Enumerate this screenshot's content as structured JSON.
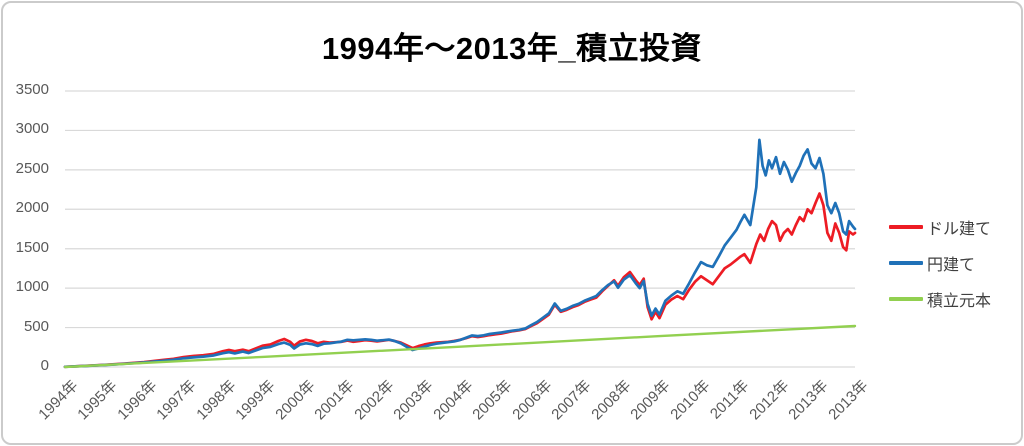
{
  "chart_data": {
    "type": "line",
    "title": "1994年～2013年_積立投資",
    "xlabel": "",
    "ylabel": "",
    "ylim": [
      0,
      3500
    ],
    "y_ticks": [
      0,
      500,
      1000,
      1500,
      2000,
      2500,
      3000,
      3500
    ],
    "x_range": [
      0,
      20
    ],
    "x_tick_labels": [
      "1994年",
      "1995年",
      "1996年",
      "1997年",
      "1998年",
      "1999年",
      "2000年",
      "2001年",
      "2002年",
      "2003年",
      "2004年",
      "2005年",
      "2006年",
      "2007年",
      "2008年",
      "2009年",
      "2010年",
      "2011年",
      "2012年",
      "2013年",
      "2013年"
    ],
    "grid": true,
    "legend_position": "right",
    "gridline_color": "#D9D9D9",
    "axis_label_color": "#595959",
    "series": [
      {
        "name": "ドル建て",
        "color": "#ED1C24",
        "points": [
          [
            0,
            2
          ],
          [
            0.25,
            8
          ],
          [
            0.5,
            14
          ],
          [
            0.75,
            20
          ],
          [
            1,
            27
          ],
          [
            1.25,
            35
          ],
          [
            1.5,
            43
          ],
          [
            1.75,
            52
          ],
          [
            2,
            62
          ],
          [
            2.25,
            76
          ],
          [
            2.5,
            90
          ],
          [
            2.75,
            104
          ],
          [
            3,
            125
          ],
          [
            3.25,
            140
          ],
          [
            3.5,
            150
          ],
          [
            3.75,
            165
          ],
          [
            4,
            200
          ],
          [
            4.15,
            215
          ],
          [
            4.3,
            200
          ],
          [
            4.5,
            220
          ],
          [
            4.65,
            200
          ],
          [
            4.8,
            230
          ],
          [
            5,
            270
          ],
          [
            5.2,
            285
          ],
          [
            5.4,
            330
          ],
          [
            5.55,
            355
          ],
          [
            5.7,
            320
          ],
          [
            5.8,
            270
          ],
          [
            5.95,
            325
          ],
          [
            6.1,
            345
          ],
          [
            6.25,
            330
          ],
          [
            6.4,
            300
          ],
          [
            6.55,
            320
          ],
          [
            6.7,
            310
          ],
          [
            6.85,
            315
          ],
          [
            7,
            320
          ],
          [
            7.15,
            335
          ],
          [
            7.3,
            320
          ],
          [
            7.45,
            330
          ],
          [
            7.6,
            340
          ],
          [
            7.75,
            335
          ],
          [
            7.9,
            325
          ],
          [
            8.05,
            335
          ],
          [
            8.2,
            345
          ],
          [
            8.35,
            330
          ],
          [
            8.5,
            310
          ],
          [
            8.65,
            275
          ],
          [
            8.8,
            240
          ],
          [
            8.95,
            265
          ],
          [
            9.1,
            285
          ],
          [
            9.25,
            300
          ],
          [
            9.4,
            310
          ],
          [
            9.55,
            315
          ],
          [
            9.7,
            320
          ],
          [
            9.85,
            330
          ],
          [
            10,
            345
          ],
          [
            10.15,
            365
          ],
          [
            10.3,
            390
          ],
          [
            10.45,
            380
          ],
          [
            10.6,
            390
          ],
          [
            10.75,
            405
          ],
          [
            10.9,
            415
          ],
          [
            11.05,
            425
          ],
          [
            11.2,
            440
          ],
          [
            11.35,
            455
          ],
          [
            11.5,
            465
          ],
          [
            11.65,
            480
          ],
          [
            11.8,
            520
          ],
          [
            11.95,
            555
          ],
          [
            12.1,
            610
          ],
          [
            12.25,
            665
          ],
          [
            12.4,
            790
          ],
          [
            12.55,
            700
          ],
          [
            12.7,
            725
          ],
          [
            12.85,
            760
          ],
          [
            13,
            785
          ],
          [
            13.15,
            825
          ],
          [
            13.3,
            855
          ],
          [
            13.45,
            880
          ],
          [
            13.6,
            960
          ],
          [
            13.75,
            1030
          ],
          [
            13.9,
            1100
          ],
          [
            14,
            1030
          ],
          [
            14.15,
            1140
          ],
          [
            14.3,
            1205
          ],
          [
            14.45,
            1100
          ],
          [
            14.55,
            1040
          ],
          [
            14.65,
            1120
          ],
          [
            14.75,
            760
          ],
          [
            14.85,
            605
          ],
          [
            14.95,
            700
          ],
          [
            15.05,
            620
          ],
          [
            15.2,
            790
          ],
          [
            15.35,
            855
          ],
          [
            15.5,
            900
          ],
          [
            15.65,
            860
          ],
          [
            15.8,
            980
          ],
          [
            15.95,
            1080
          ],
          [
            16.1,
            1150
          ],
          [
            16.25,
            1100
          ],
          [
            16.4,
            1050
          ],
          [
            16.55,
            1150
          ],
          [
            16.7,
            1250
          ],
          [
            16.85,
            1300
          ],
          [
            17,
            1360
          ],
          [
            17.1,
            1400
          ],
          [
            17.2,
            1430
          ],
          [
            17.35,
            1320
          ],
          [
            17.5,
            1560
          ],
          [
            17.6,
            1680
          ],
          [
            17.7,
            1600
          ],
          [
            17.8,
            1750
          ],
          [
            17.9,
            1850
          ],
          [
            18,
            1800
          ],
          [
            18.1,
            1600
          ],
          [
            18.2,
            1700
          ],
          [
            18.3,
            1750
          ],
          [
            18.4,
            1680
          ],
          [
            18.5,
            1800
          ],
          [
            18.6,
            1900
          ],
          [
            18.7,
            1850
          ],
          [
            18.8,
            2000
          ],
          [
            18.9,
            1950
          ],
          [
            19,
            2080
          ],
          [
            19.1,
            2200
          ],
          [
            19.2,
            2050
          ],
          [
            19.3,
            1700
          ],
          [
            19.4,
            1600
          ],
          [
            19.5,
            1820
          ],
          [
            19.6,
            1700
          ],
          [
            19.7,
            1520
          ],
          [
            19.78,
            1480
          ],
          [
            19.85,
            1720
          ],
          [
            19.95,
            1680
          ],
          [
            20,
            1700
          ]
        ]
      },
      {
        "name": "円建て",
        "color": "#1F71B8",
        "points": [
          [
            0,
            2
          ],
          [
            0.25,
            7
          ],
          [
            0.5,
            13
          ],
          [
            0.75,
            19
          ],
          [
            1,
            25
          ],
          [
            1.25,
            32
          ],
          [
            1.5,
            40
          ],
          [
            1.75,
            48
          ],
          [
            2,
            57
          ],
          [
            2.25,
            68
          ],
          [
            2.5,
            80
          ],
          [
            2.75,
            93
          ],
          [
            3,
            110
          ],
          [
            3.25,
            122
          ],
          [
            3.5,
            132
          ],
          [
            3.75,
            146
          ],
          [
            4,
            175
          ],
          [
            4.15,
            188
          ],
          [
            4.3,
            172
          ],
          [
            4.5,
            195
          ],
          [
            4.65,
            178
          ],
          [
            4.8,
            205
          ],
          [
            5,
            240
          ],
          [
            5.2,
            255
          ],
          [
            5.4,
            290
          ],
          [
            5.55,
            310
          ],
          [
            5.7,
            280
          ],
          [
            5.8,
            235
          ],
          [
            5.95,
            285
          ],
          [
            6.1,
            300
          ],
          [
            6.25,
            290
          ],
          [
            6.4,
            268
          ],
          [
            6.55,
            295
          ],
          [
            6.7,
            300
          ],
          [
            6.85,
            312
          ],
          [
            7,
            322
          ],
          [
            7.15,
            345
          ],
          [
            7.3,
            338
          ],
          [
            7.45,
            345
          ],
          [
            7.6,
            350
          ],
          [
            7.75,
            345
          ],
          [
            7.9,
            333
          ],
          [
            8.05,
            340
          ],
          [
            8.2,
            348
          ],
          [
            8.35,
            328
          ],
          [
            8.5,
            300
          ],
          [
            8.65,
            255
          ],
          [
            8.8,
            215
          ],
          [
            8.95,
            235
          ],
          [
            9.1,
            258
          ],
          [
            9.25,
            280
          ],
          [
            9.4,
            295
          ],
          [
            9.55,
            305
          ],
          [
            9.7,
            315
          ],
          [
            9.85,
            325
          ],
          [
            10,
            342
          ],
          [
            10.15,
            370
          ],
          [
            10.3,
            400
          ],
          [
            10.45,
            392
          ],
          [
            10.6,
            402
          ],
          [
            10.75,
            418
          ],
          [
            10.9,
            428
          ],
          [
            11.05,
            438
          ],
          [
            11.2,
            450
          ],
          [
            11.35,
            462
          ],
          [
            11.5,
            472
          ],
          [
            11.65,
            488
          ],
          [
            11.8,
            530
          ],
          [
            11.95,
            570
          ],
          [
            12.1,
            625
          ],
          [
            12.25,
            680
          ],
          [
            12.4,
            805
          ],
          [
            12.55,
            712
          ],
          [
            12.7,
            738
          ],
          [
            12.85,
            775
          ],
          [
            13,
            800
          ],
          [
            13.15,
            840
          ],
          [
            13.3,
            870
          ],
          [
            13.45,
            900
          ],
          [
            13.6,
            975
          ],
          [
            13.75,
            1040
          ],
          [
            13.9,
            1085
          ],
          [
            14,
            1005
          ],
          [
            14.15,
            1110
          ],
          [
            14.3,
            1165
          ],
          [
            14.45,
            1060
          ],
          [
            14.55,
            1000
          ],
          [
            14.65,
            1090
          ],
          [
            14.75,
            800
          ],
          [
            14.85,
            650
          ],
          [
            14.95,
            740
          ],
          [
            15.05,
            665
          ],
          [
            15.2,
            840
          ],
          [
            15.35,
            905
          ],
          [
            15.5,
            960
          ],
          [
            15.65,
            930
          ],
          [
            15.8,
            1060
          ],
          [
            15.95,
            1200
          ],
          [
            16.1,
            1330
          ],
          [
            16.25,
            1290
          ],
          [
            16.4,
            1270
          ],
          [
            16.55,
            1400
          ],
          [
            16.7,
            1540
          ],
          [
            16.85,
            1640
          ],
          [
            17,
            1740
          ],
          [
            17.1,
            1840
          ],
          [
            17.2,
            1930
          ],
          [
            17.35,
            1800
          ],
          [
            17.5,
            2280
          ],
          [
            17.58,
            2880
          ],
          [
            17.66,
            2550
          ],
          [
            17.74,
            2430
          ],
          [
            17.82,
            2620
          ],
          [
            17.9,
            2520
          ],
          [
            18,
            2660
          ],
          [
            18.1,
            2450
          ],
          [
            18.2,
            2600
          ],
          [
            18.3,
            2500
          ],
          [
            18.4,
            2350
          ],
          [
            18.5,
            2460
          ],
          [
            18.6,
            2550
          ],
          [
            18.7,
            2680
          ],
          [
            18.8,
            2760
          ],
          [
            18.9,
            2580
          ],
          [
            19,
            2520
          ],
          [
            19.1,
            2650
          ],
          [
            19.2,
            2450
          ],
          [
            19.3,
            2050
          ],
          [
            19.4,
            1950
          ],
          [
            19.5,
            2080
          ],
          [
            19.6,
            1950
          ],
          [
            19.7,
            1720
          ],
          [
            19.78,
            1680
          ],
          [
            19.85,
            1850
          ],
          [
            19.95,
            1780
          ],
          [
            20,
            1750
          ]
        ]
      },
      {
        "name": "積立元本",
        "color": "#92D050",
        "points": [
          [
            0,
            0
          ],
          [
            5,
            128
          ],
          [
            10,
            258
          ],
          [
            15,
            390
          ],
          [
            20,
            520
          ]
        ]
      }
    ]
  }
}
